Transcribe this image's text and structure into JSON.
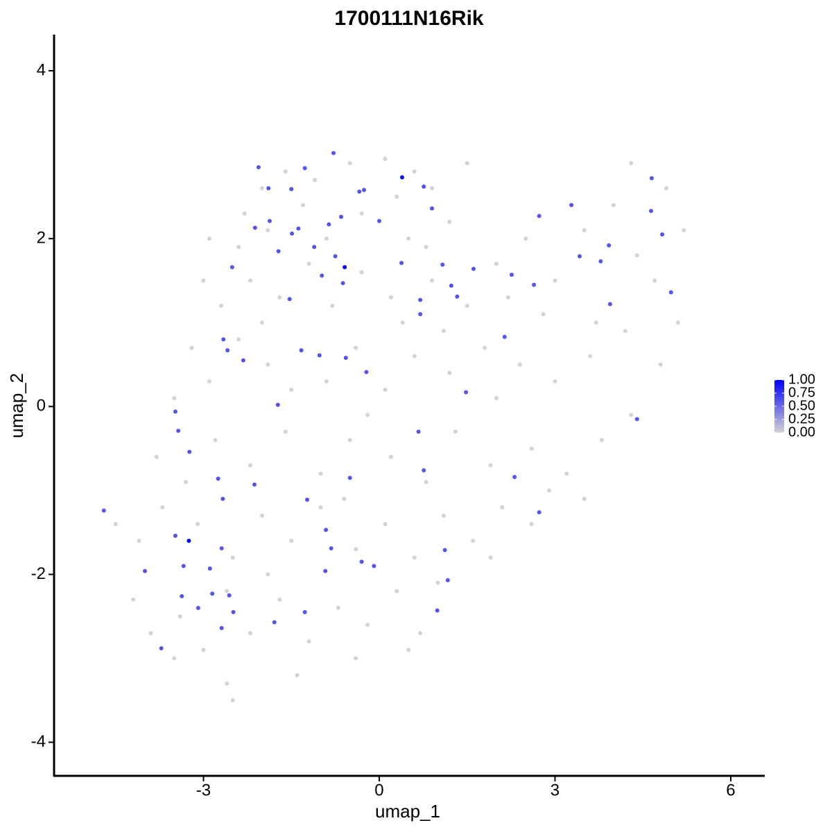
{
  "chart_data": {
    "type": "scatter",
    "title": "1700111N16Rik",
    "x_label": "umap_1",
    "y_label": "umap_2",
    "xlim": [
      -5.55,
      6.58
    ],
    "ylim": [
      -4.4,
      4.43
    ],
    "xticks": [
      -3,
      0,
      3,
      6
    ],
    "yticks": [
      -4,
      -2,
      0,
      2,
      4
    ],
    "series": [
      {
        "color": "lightgrey",
        "x": [
          -2.0,
          -1.6,
          -1.1,
          -0.5,
          0.1,
          0.6,
          1.5,
          -2.3,
          -1.3,
          -0.3,
          0.3,
          0.9,
          -2.9,
          -2.4,
          -1.9,
          -0.9,
          0.5,
          1.2,
          0.8,
          -3.0,
          -2.7,
          -2.2,
          -1.7,
          -1.2,
          -0.3,
          0.2,
          0.9,
          1.5,
          2.0,
          2.5,
          3.0,
          3.5,
          4.0,
          4.4,
          4.9,
          5.2,
          4.7,
          3.7,
          2.8,
          2.2,
          -0.8,
          -2.0,
          0.4,
          1.1,
          4.3,
          -3.2,
          -2.9,
          -2.4,
          -1.9,
          -1.5,
          -0.9,
          -0.4,
          0.1,
          0.6,
          1.2,
          1.8,
          2.4,
          3.0,
          3.6,
          4.2,
          4.8,
          5.1,
          2.0,
          -3.5,
          -0.2,
          -3.8,
          -3.3,
          -2.8,
          -2.2,
          -1.6,
          -1.0,
          -0.5,
          0.2,
          0.8,
          1.3,
          1.9,
          2.6,
          3.2,
          3.8,
          4.3,
          3.5,
          2.9,
          -4.5,
          -4.1,
          -3.7,
          -3.1,
          -2.5,
          -2.0,
          -1.5,
          -1.0,
          -0.4,
          0.1,
          0.6,
          1.1,
          1.6,
          2.1,
          2.6,
          1.9,
          -0.6,
          -4.2,
          -3.9,
          -3.4,
          -3.0,
          -2.6,
          -2.2,
          -1.7,
          -1.2,
          -0.7,
          -0.2,
          0.3,
          0.7,
          1.0,
          -0.4,
          -1.4,
          -2.6,
          -2.5,
          -3.5,
          -1.9,
          0.5
        ],
        "y": [
          2.6,
          2.8,
          2.7,
          2.9,
          2.95,
          2.8,
          2.9,
          2.3,
          2.4,
          2.3,
          2.5,
          2.6,
          2.0,
          1.9,
          2.1,
          2.0,
          2.0,
          2.2,
          1.9,
          1.5,
          1.2,
          1.5,
          1.3,
          1.7,
          1.6,
          1.3,
          1.5,
          1.2,
          1.7,
          2.0,
          1.5,
          2.1,
          2.4,
          1.8,
          2.6,
          2.1,
          1.5,
          1.0,
          1.1,
          1.3,
          1.2,
          1.0,
          1.0,
          0.9,
          2.9,
          0.7,
          0.3,
          0.8,
          0.5,
          0.2,
          0.3,
          0.7,
          0.2,
          0.6,
          0.4,
          0.7,
          0.5,
          0.3,
          0.6,
          0.9,
          0.5,
          1.0,
          0.1,
          0.1,
          -0.1,
          -0.6,
          -0.9,
          -0.4,
          -0.7,
          -0.3,
          -0.8,
          -0.4,
          -0.6,
          -0.9,
          -0.3,
          -0.7,
          -0.5,
          -0.8,
          -0.4,
          -0.1,
          -1.1,
          -1.0,
          -1.4,
          -1.6,
          -1.2,
          -1.4,
          -1.8,
          -1.3,
          -1.6,
          -1.2,
          -1.7,
          -1.4,
          -1.8,
          -1.3,
          -1.6,
          -1.2,
          -1.4,
          -1.8,
          -1.1,
          -2.3,
          -2.7,
          -2.5,
          -2.9,
          -2.2,
          -2.7,
          -2.3,
          -2.8,
          -2.4,
          -2.6,
          -2.2,
          -2.7,
          -2.1,
          -3.0,
          -3.2,
          -3.3,
          -3.5,
          -3.0,
          -2.0,
          -2.9
        ]
      },
      {
        "x": [
          0.39,
          -0.59,
          -3.25,
          -2.06,
          -1.27,
          -0.78,
          -1.89,
          -1.5,
          -0.34,
          -0.26,
          0.76,
          0.9,
          -1.87,
          -2.12,
          -0.86,
          -0.65,
          0.0,
          -1.49,
          -1.38,
          -1.72,
          -1.11,
          -0.75,
          -2.51,
          0.38,
          1.08,
          1.61,
          -0.98,
          -0.62,
          -1.53,
          1.23,
          1.33,
          0.7,
          0.7,
          2.73,
          3.28,
          2.26,
          2.64,
          3.42,
          3.78,
          3.92,
          3.94,
          4.65,
          4.64,
          4.83,
          4.98,
          -2.66,
          -2.59,
          -2.32,
          -1.33,
          -1.02,
          -0.57,
          -0.22,
          2.14,
          1.48,
          -1.73,
          -3.48,
          -3.43,
          -3.24,
          0.67,
          4.4,
          -2.75,
          -2.13,
          -2.67,
          -1.23,
          -0.5,
          0.76,
          2.31,
          2.73,
          -4.7,
          -3.48,
          -0.91,
          -0.82,
          1.12,
          -3.34,
          -2.89,
          -2.69,
          -4.0,
          -0.3,
          -0.09,
          -0.92,
          1.17,
          -3.37,
          -2.85,
          -2.56,
          -3.09,
          -2.49,
          -1.27,
          0.99,
          -1.79,
          -2.69,
          -3.72
        ],
        "y": [
          2.73,
          1.66,
          -1.6,
          2.85,
          2.84,
          3.02,
          2.6,
          2.59,
          2.56,
          2.58,
          2.62,
          2.36,
          2.21,
          2.13,
          2.17,
          2.26,
          2.21,
          2.06,
          2.12,
          1.85,
          1.9,
          1.79,
          1.66,
          1.71,
          1.69,
          1.64,
          1.56,
          1.47,
          1.28,
          1.44,
          1.31,
          1.27,
          1.1,
          2.27,
          2.4,
          1.57,
          1.45,
          1.79,
          1.73,
          1.92,
          1.22,
          2.72,
          2.33,
          2.05,
          1.36,
          0.8,
          0.67,
          0.55,
          0.67,
          0.61,
          0.58,
          0.41,
          0.83,
          0.17,
          0.02,
          -0.06,
          -0.29,
          -0.54,
          -0.3,
          -0.15,
          -0.86,
          -0.93,
          -1.1,
          -1.11,
          -0.85,
          -0.76,
          -0.84,
          -1.26,
          -1.24,
          -1.54,
          -1.47,
          -1.69,
          -1.71,
          -1.9,
          -1.93,
          -1.69,
          -1.96,
          -1.85,
          -1.9,
          -1.96,
          -2.07,
          -2.26,
          -2.23,
          -2.25,
          -2.4,
          -2.45,
          -2.45,
          -2.43,
          -2.57,
          -2.64,
          -2.88
        ],
        "values": [
          1.0,
          1.0,
          1.0,
          0.6,
          0.6,
          0.6,
          0.6,
          0.6,
          0.6,
          0.6,
          0.6,
          0.6,
          0.6,
          0.6,
          0.6,
          0.6,
          0.6,
          0.6,
          0.6,
          0.6,
          0.6,
          0.6,
          0.6,
          0.6,
          0.6,
          0.6,
          0.6,
          0.6,
          0.6,
          0.6,
          0.6,
          0.6,
          0.6,
          0.6,
          0.6,
          0.6,
          0.6,
          0.6,
          0.6,
          0.6,
          0.6,
          0.6,
          0.6,
          0.6,
          0.6,
          0.6,
          0.6,
          0.6,
          0.6,
          0.6,
          0.6,
          0.6,
          0.6,
          0.6,
          0.6,
          0.6,
          0.6,
          0.6,
          0.6,
          0.6,
          0.6,
          0.6,
          0.6,
          0.6,
          0.6,
          0.6,
          0.6,
          0.6,
          0.6,
          0.6,
          0.6,
          0.6,
          0.6,
          0.6,
          0.6,
          0.6,
          0.6,
          0.6,
          0.6,
          0.6,
          0.6,
          0.6,
          0.6,
          0.6,
          0.6,
          0.6,
          0.6,
          0.6,
          0.6,
          0.6,
          0.6
        ]
      }
    ],
    "colorbar": {
      "lim": [
        0,
        1
      ],
      "colors": [
        "lightgrey",
        "blue"
      ],
      "ticks": [
        {
          "value": 0,
          "label": "0.00"
        },
        {
          "value": 0.25,
          "label": "0.25"
        },
        {
          "value": 0.5,
          "label": "0.50"
        },
        {
          "value": 0.75,
          "label": "0.75"
        },
        {
          "value": 1,
          "label": "1.00"
        }
      ]
    }
  }
}
